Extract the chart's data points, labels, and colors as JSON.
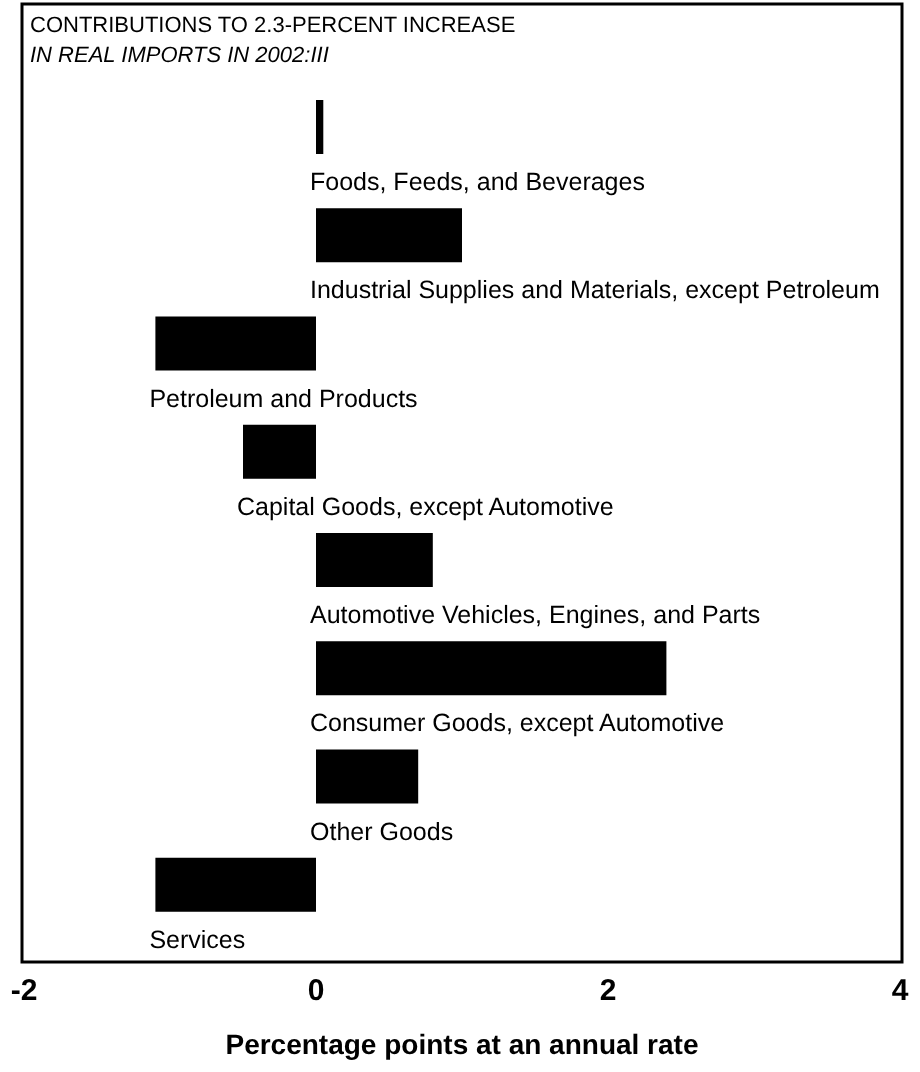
{
  "chart_data": {
    "type": "bar",
    "orientation": "horizontal",
    "title": "CONTRIBUTIONS TO 2.3-PERCENT INCREASE",
    "subtitle": "IN REAL IMPORTS IN 2002:III",
    "categories": [
      "Foods, Feeds, and Beverages",
      "Industrial Supplies and Materials, except Petroleum",
      "Petroleum and Products",
      "Capital Goods, except Automotive",
      "Automotive Vehicles, Engines, and Parts",
      "Consumer Goods, except Automotive",
      "Other Goods",
      "Services"
    ],
    "values": [
      0.05,
      1.0,
      -1.1,
      -0.5,
      0.8,
      2.4,
      0.7,
      -1.1
    ],
    "color": "#000000",
    "xlim": [
      -2,
      4
    ],
    "xticks": [
      -2,
      0,
      2,
      4
    ],
    "xlabel": "Percentage points at an annual rate"
  }
}
